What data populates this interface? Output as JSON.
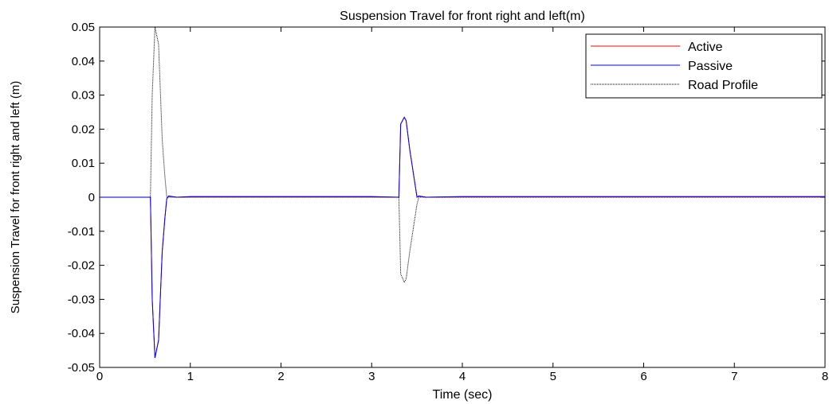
{
  "chart_data": {
    "type": "line",
    "title": "Suspension Travel for front right and left(m)",
    "xlabel": "Time (sec)",
    "ylabel": "Suspension Travel for front right and left  (m)",
    "xlim": [
      0,
      8
    ],
    "ylim": [
      -0.05,
      0.05
    ],
    "xticks": [
      0,
      1,
      2,
      3,
      4,
      5,
      6,
      7,
      8
    ],
    "xtick_labels": [
      "0",
      "1",
      "2",
      "3",
      "4",
      "5",
      "6",
      "7",
      "8"
    ],
    "yticks": [
      0.05,
      0.04,
      0.03,
      0.02,
      0.01,
      0,
      -0.01,
      -0.02,
      -0.03,
      -0.04,
      -0.05
    ],
    "ytick_labels": [
      "0.05",
      "0.04",
      "0.03",
      "0.02",
      "0.01",
      "0",
      "-0.01",
      "-0.02",
      "-0.03",
      "-0.04",
      "-0.05"
    ],
    "grid": false,
    "legend_position": "top-right",
    "series": [
      {
        "name": "Active",
        "color": "#ff0000",
        "style": "solid",
        "x": [
          0,
          0.56,
          0.58,
          0.61,
          0.65,
          0.69,
          0.72,
          0.74,
          0.76,
          0.8,
          0.85,
          1.0,
          1.5,
          2.0,
          2.5,
          3.0,
          3.3,
          3.32,
          3.36,
          3.38,
          3.42,
          3.46,
          3.5,
          3.52,
          3.6,
          4.0,
          5.0,
          6.0,
          7.0,
          8.0
        ],
        "y": [
          0,
          0,
          -0.03,
          -0.0472,
          -0.042,
          -0.016,
          -0.006,
          -0.0005,
          0.0003,
          0.0002,
          0,
          0.0001,
          0.0001,
          0.0001,
          0.0001,
          0.0001,
          0,
          0.0215,
          0.0235,
          0.0225,
          0.014,
          0.007,
          0,
          0.0003,
          0,
          0.0001,
          0.0001,
          0.0001,
          0.0001,
          0.0001
        ]
      },
      {
        "name": "Passive",
        "color": "#0000ff",
        "style": "solid",
        "x": [
          0,
          0.56,
          0.58,
          0.61,
          0.65,
          0.69,
          0.72,
          0.74,
          0.76,
          0.8,
          0.85,
          1.0,
          1.5,
          2.0,
          2.5,
          3.0,
          3.3,
          3.32,
          3.36,
          3.38,
          3.42,
          3.46,
          3.5,
          3.52,
          3.6,
          4.0,
          5.0,
          6.0,
          7.0,
          8.0
        ],
        "y": [
          0,
          0,
          -0.03,
          -0.0472,
          -0.042,
          -0.016,
          -0.006,
          -0.0005,
          0.0004,
          0.0002,
          0,
          0.0002,
          0.0002,
          0.0002,
          0.0002,
          0.0002,
          0,
          0.0215,
          0.0235,
          0.0225,
          0.014,
          0.007,
          0,
          0.0004,
          0,
          0.0002,
          0.0002,
          0.0002,
          0.0002,
          0.0002
        ]
      },
      {
        "name": "Road Profile",
        "color": "#000000",
        "style": "dotted",
        "x": [
          0,
          0.56,
          0.58,
          0.61,
          0.65,
          0.69,
          0.72,
          0.74,
          0.76,
          1.0,
          3.3,
          3.32,
          3.36,
          3.38,
          3.42,
          3.46,
          3.5,
          3.52,
          8.0
        ],
        "y": [
          0,
          0,
          0.03,
          0.05,
          0.045,
          0.017,
          0.006,
          0,
          0,
          0,
          0,
          -0.0225,
          -0.025,
          -0.024,
          -0.016,
          -0.009,
          -0.002,
          0,
          0
        ]
      }
    ]
  }
}
